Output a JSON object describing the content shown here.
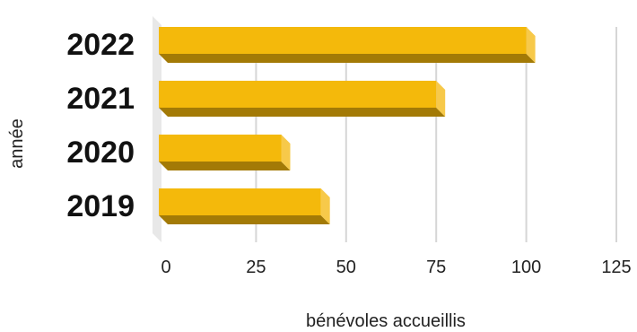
{
  "chart_data": {
    "type": "bar",
    "orientation": "horizontal",
    "style": "3d",
    "categories": [
      "2022",
      "2021",
      "2020",
      "2019"
    ],
    "values": [
      100,
      75,
      32,
      43
    ],
    "xlabel": "bénévoles accueillis",
    "ylabel": "année",
    "xlim": [
      0,
      125
    ],
    "xticks": [
      "0",
      "25",
      "50",
      "75",
      "100",
      "125"
    ],
    "grid": true,
    "legend": "none",
    "colors": {
      "bar_front": "#f4b90b",
      "bar_bottom": "#a37a06",
      "bar_side": "#f7c94a",
      "grid": "#d6d6d6",
      "floor": "#e8e8e8"
    }
  }
}
